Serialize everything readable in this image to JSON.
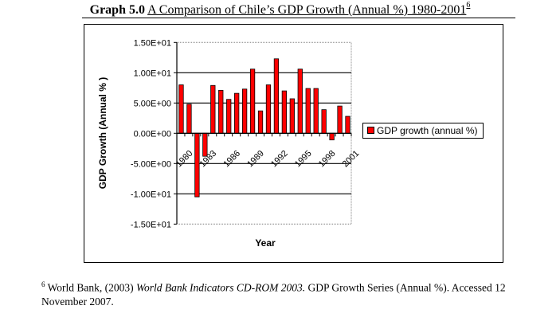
{
  "title": {
    "lead": "Graph 5.0",
    "main": "A Comparison of Chile’s GDP Growth (Annual %) 1980-2001",
    "footnote_ref": "6"
  },
  "footnote": {
    "marker": "6",
    "text_before": " World Bank, (2003) ",
    "italic": "World Bank Indicators CD-ROM 2003.",
    "text_after": " GDP Growth Series (Annual %). Accessed 12 November 2007."
  },
  "chart_data": {
    "type": "bar",
    "title": "",
    "xlabel": "Year",
    "ylabel": "GDP Growth (Annual % )",
    "ylim": [
      -15,
      15
    ],
    "yticks": [
      15,
      10,
      5,
      0,
      -5,
      -10,
      -15
    ],
    "ytick_labels": [
      "1.50E+01",
      "1.00E+01",
      "5.00E+00",
      "0.00E+00",
      "-5.00E+00",
      "-1.00E+01",
      "-1.50E+01"
    ],
    "grid": "horizontal major",
    "legend_position": "right",
    "bar_color": "#ff0000",
    "categories": [
      "1980",
      "1981",
      "1982",
      "1983",
      "1984",
      "1985",
      "1986",
      "1987",
      "1988",
      "1989",
      "1990",
      "1991",
      "1992",
      "1993",
      "1994",
      "1995",
      "1996",
      "1997",
      "1998",
      "1999",
      "2000",
      "2001"
    ],
    "xtick_labels_shown": [
      "1980",
      "1983",
      "1986",
      "1989",
      "1992",
      "1995",
      "1998",
      "2001"
    ],
    "series": [
      {
        "name": "GDP growth (annual %)",
        "values": [
          8.0,
          4.8,
          -10.5,
          -3.8,
          7.9,
          7.1,
          5.6,
          6.6,
          7.3,
          10.6,
          3.7,
          8.0,
          12.3,
          7.0,
          5.7,
          10.6,
          7.4,
          7.4,
          3.9,
          -1.1,
          4.5,
          2.8
        ]
      }
    ]
  }
}
